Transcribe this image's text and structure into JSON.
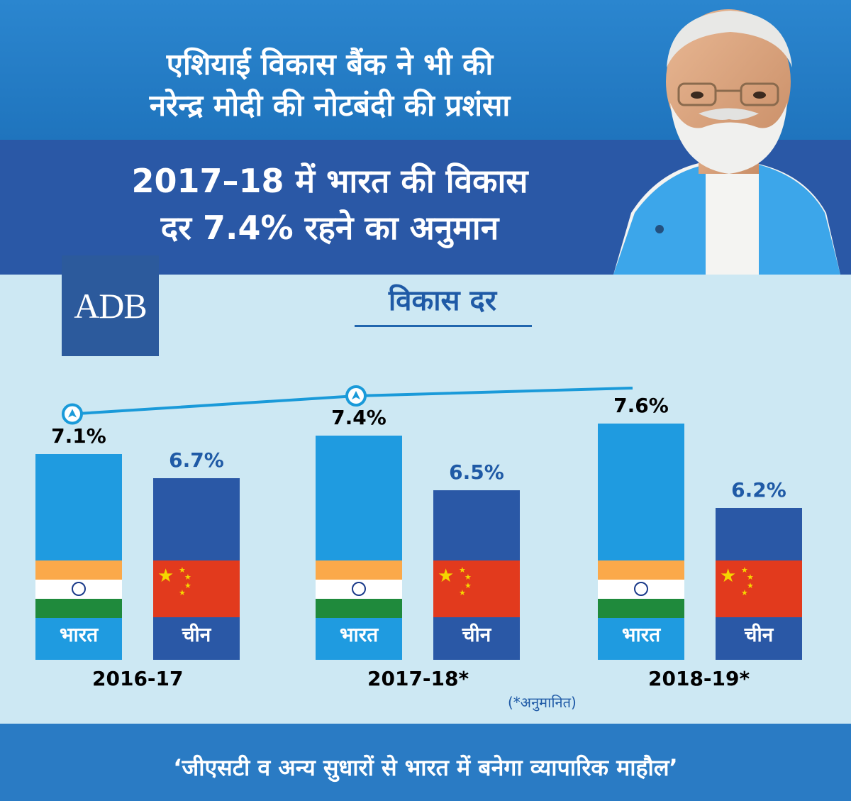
{
  "headline": {
    "line1": "एशियाई विकास बैंक ने भी की",
    "line2": "नरेन्द्र मोदी की नोटबंदी की प्रशंसा"
  },
  "subheadline": {
    "line1": "2017–18 में भारत की विकास",
    "line2": "दर 7.4% रहने का अनुमान"
  },
  "logo": {
    "text": "ADB"
  },
  "estimate_note": "(*अनुमानित)",
  "footer": {
    "quote": "‘जीएसटी व अन्य सुधारों से भारत में बनेगा व्यापारिक माहौल’"
  },
  "colors": {
    "india_bar": "#1f9be0",
    "china_bar": "#2a58a6",
    "saffron": "#fba94a",
    "green": "#1f8a3c",
    "china_red": "#e23a1d",
    "china_star": "#f5d600",
    "trend_line": "#1a9ad9",
    "india_label": "#000000",
    "china_label": "#1f5aa6"
  },
  "chart_data": {
    "type": "bar",
    "title": "विकास दर",
    "categories": [
      "2016-17",
      "2017-18*",
      "2018-19*"
    ],
    "series": [
      {
        "name": "भारत",
        "values": [
          7.1,
          7.4,
          7.6
        ],
        "labels": [
          "7.1%",
          "7.4%",
          "7.6%"
        ]
      },
      {
        "name": "चीन",
        "values": [
          6.7,
          6.5,
          6.2
        ],
        "labels": [
          "6.7%",
          "6.5%",
          "6.2%"
        ]
      }
    ],
    "trend_line": {
      "series": "भारत",
      "marker": "arrow-up"
    },
    "xlabel": "",
    "ylabel": "",
    "ylim": [
      0,
      8
    ]
  }
}
